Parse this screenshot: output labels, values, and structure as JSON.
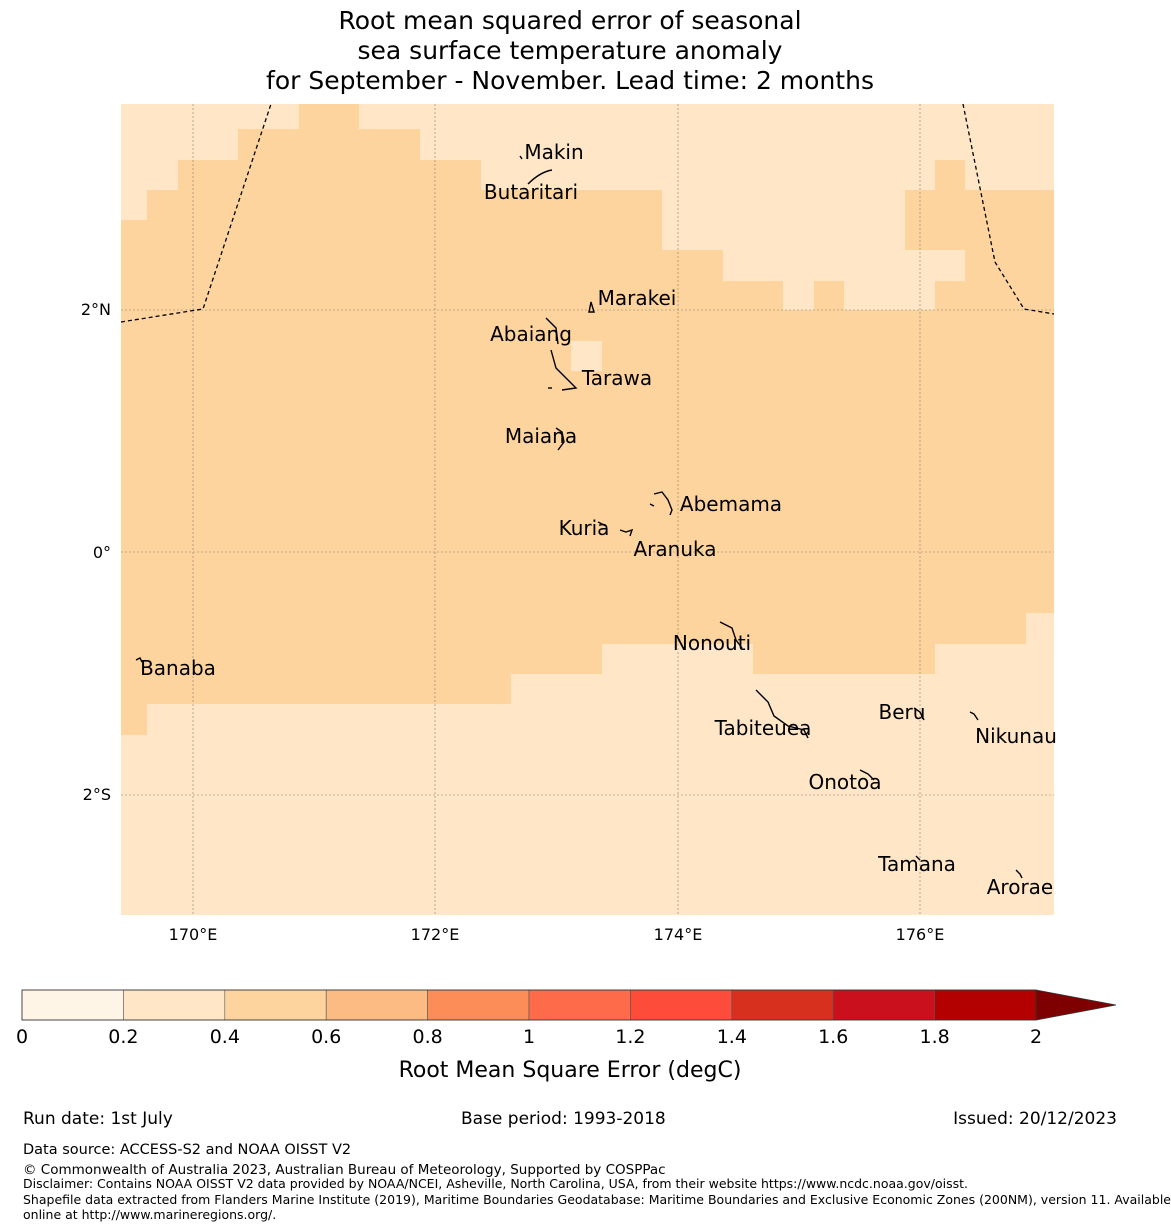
{
  "title": {
    "line1": "Root mean squared error of seasonal",
    "line2": "sea surface temperature anomaly",
    "line3": "for September - November. Lead time: 2 months"
  },
  "map": {
    "lon_ticks": [
      "170°E",
      "172°E",
      "174°E",
      "176°E"
    ],
    "lat_ticks": [
      "2°N",
      "0°",
      "2°S"
    ],
    "islands": [
      {
        "name": "Makin"
      },
      {
        "name": "Butaritari"
      },
      {
        "name": "Marakei"
      },
      {
        "name": "Abaiang"
      },
      {
        "name": "Tarawa"
      },
      {
        "name": "Maiana"
      },
      {
        "name": "Abemama"
      },
      {
        "name": "Kuria"
      },
      {
        "name": "Aranuka"
      },
      {
        "name": "Banaba"
      },
      {
        "name": "Nonouti"
      },
      {
        "name": "Tabiteuea"
      },
      {
        "name": "Beru"
      },
      {
        "name": "Nikunau"
      },
      {
        "name": "Onotoa"
      },
      {
        "name": "Tamana"
      },
      {
        "name": "Arorae"
      }
    ]
  },
  "colorbar": {
    "ticks": [
      "0",
      "0.2",
      "0.4",
      "0.6",
      "0.8",
      "1",
      "1.2",
      "1.4",
      "1.6",
      "1.8",
      "2"
    ],
    "colors": [
      "#fff5e6",
      "#fee6c7",
      "#fdd49e",
      "#fdbb84",
      "#fc8d59",
      "#fd6b4a",
      "#fd4d3a",
      "#d7301f",
      "#cb101d",
      "#b30000"
    ],
    "extend_color": "#7f0000",
    "label": "Root Mean Square Error (degC)"
  },
  "footer": {
    "run_date": "Run date: 1st July",
    "base_period": "Base period: 1993-2018",
    "issued": "Issued: 20/12/2023",
    "data_source": "Data source: ACCESS-S2 and NOAA OISST V2",
    "copyright": "© Commonwealth of Australia 2023, Australian Bureau of Meteorology, Supported by COSPPac",
    "disclaimer": "Disclaimer: Contains NOAA OISST V2 data provided by NOAA/NCEI, Asheville, North Carolina, USA, from their website https://www.ncdc.noaa.gov/oisst.",
    "shapefile1": "Shapefile data extracted from Flanders Marine Institute (2019), Maritime Boundaries Geodatabase: Maritime Boundaries and Exclusive Economic Zones (200NM), version 11. Available",
    "shapefile2": "online at http://www.marineregions.org/."
  }
}
